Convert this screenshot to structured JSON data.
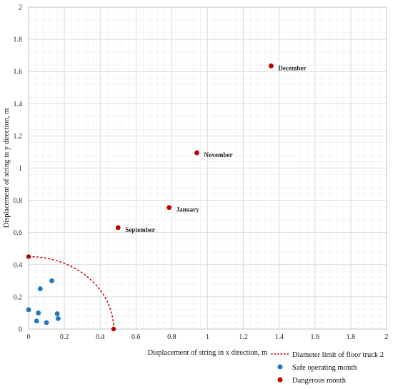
{
  "chart_data": {
    "type": "scatter",
    "title": "",
    "xlabel": "Displacement of string in x direction, m",
    "ylabel": "Displacement of string in y direction, m",
    "xlim": [
      0,
      2
    ],
    "ylim": [
      0,
      2
    ],
    "xticks": [
      "0",
      "0.2",
      "0.4",
      "0.6",
      "0.8",
      "1",
      "1.2",
      "1.4",
      "1.6",
      "1.8",
      "2"
    ],
    "yticks": [
      "0",
      "0.2",
      "0.4",
      "0.6",
      "0.8",
      "1",
      "1.2",
      "1.4",
      "1.6",
      "1.8",
      "2"
    ],
    "grid": true,
    "legend_position": "bottom-right",
    "series": [
      {
        "name": "Diameter limit of floor truck 2",
        "kind": "dashed-arc",
        "color": "#c00000",
        "radius_x": 0.475,
        "radius_y": 0.45,
        "endpoints": [
          {
            "x": 0,
            "y": 0.45
          },
          {
            "x": 0.475,
            "y": 0
          }
        ]
      },
      {
        "name": "Safe operating month",
        "kind": "points",
        "color": "#1f77c4",
        "points": [
          {
            "x": 0.0,
            "y": 0.12
          },
          {
            "x": 0.045,
            "y": 0.05
          },
          {
            "x": 0.055,
            "y": 0.1
          },
          {
            "x": 0.065,
            "y": 0.25
          },
          {
            "x": 0.1,
            "y": 0.04
          },
          {
            "x": 0.13,
            "y": 0.3
          },
          {
            "x": 0.16,
            "y": 0.095
          },
          {
            "x": 0.165,
            "y": 0.065
          }
        ]
      },
      {
        "name": "Dangerous month",
        "kind": "points",
        "color": "#c00000",
        "points": [
          {
            "x": 0.5,
            "y": 0.63,
            "label": "September"
          },
          {
            "x": 0.785,
            "y": 0.755,
            "label": "January"
          },
          {
            "x": 0.94,
            "y": 1.095,
            "label": "November"
          },
          {
            "x": 1.355,
            "y": 1.635,
            "label": "December"
          }
        ]
      }
    ]
  }
}
